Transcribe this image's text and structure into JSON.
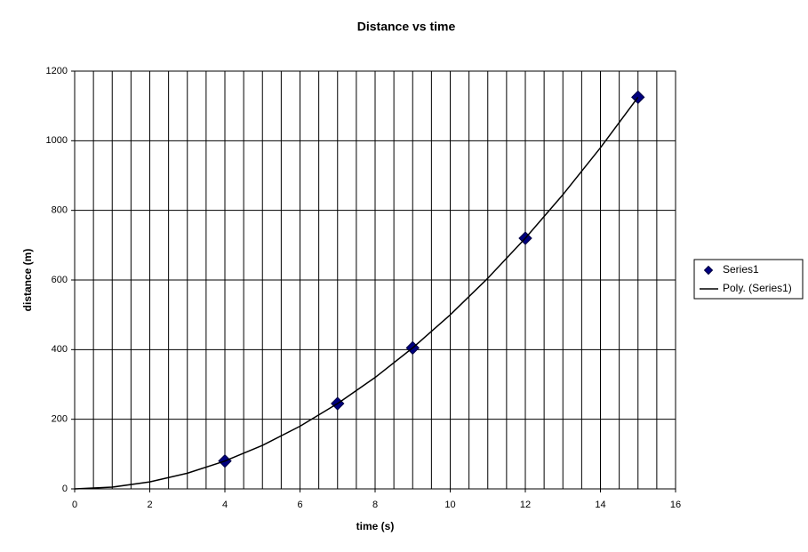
{
  "chart_data": {
    "type": "scatter",
    "title": "Distance vs time",
    "x_label": "time (s)",
    "y_label": "distance (m)",
    "series": [
      {
        "name": "Series1",
        "type": "scatter",
        "color": "#000080",
        "x": [
          4,
          7,
          9,
          12,
          15
        ],
        "values": [
          80,
          245,
          405,
          720,
          1125
        ]
      },
      {
        "name": "Poly. (Series1)",
        "type": "line",
        "color": "#000000",
        "x": [
          0,
          1,
          2,
          3,
          4,
          5,
          6,
          7,
          8,
          9,
          10,
          11,
          12,
          13,
          14,
          15
        ],
        "values": [
          0,
          5,
          20,
          45,
          80,
          125,
          180,
          245,
          320,
          405,
          500,
          605,
          720,
          845,
          980,
          1125
        ]
      }
    ],
    "xlim": [
      0,
      16
    ],
    "xticks": [
      0,
      2,
      4,
      6,
      8,
      10,
      12,
      14,
      16
    ],
    "x_minor_interval": 0.5,
    "ylim": [
      0,
      1200
    ],
    "yticks": [
      0,
      200,
      400,
      600,
      800,
      1000,
      1200
    ],
    "grid": true,
    "legend": "right"
  }
}
